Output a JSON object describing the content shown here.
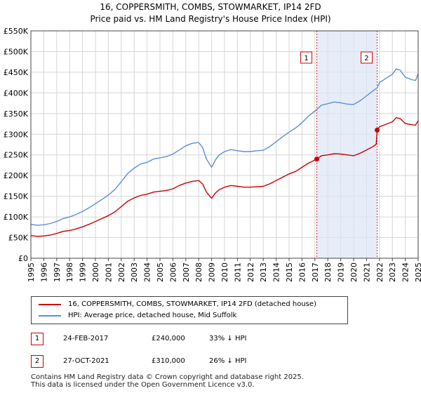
{
  "title_line1": "16, COPPERSMITH, COMBS, STOWMARKET, IP14 2FD",
  "title_line2": "Price paid vs. HM Land Registry's House Price Index (HPI)",
  "chart_data": {
    "type": "line",
    "xlim": [
      1995,
      2025
    ],
    "ylim": [
      0,
      550000
    ],
    "y_ticks": [
      0,
      50000,
      100000,
      150000,
      200000,
      250000,
      300000,
      350000,
      400000,
      450000,
      500000,
      550000
    ],
    "y_tick_labels": [
      "£0",
      "£50K",
      "£100K",
      "£150K",
      "£200K",
      "£250K",
      "£300K",
      "£350K",
      "£400K",
      "£450K",
      "£500K",
      "£550K"
    ],
    "x_ticks": [
      1995,
      1996,
      1997,
      1998,
      1999,
      2000,
      2001,
      2002,
      2003,
      2004,
      2005,
      2006,
      2007,
      2008,
      2009,
      2010,
      2011,
      2012,
      2013,
      2014,
      2015,
      2016,
      2017,
      2018,
      2019,
      2020,
      2021,
      2022,
      2023,
      2024,
      2025
    ],
    "x_tick_labels": [
      "1995",
      "1996",
      "1997",
      "1998",
      "1999",
      "2000",
      "2001",
      "2002",
      "2003",
      "2004",
      "2005",
      "2006",
      "2007",
      "2008",
      "2009",
      "2010",
      "2011",
      "2012",
      "2013",
      "2014",
      "2015",
      "2016",
      "2017",
      "2018",
      "2019",
      "2020",
      "2021",
      "2022",
      "2023",
      "2024",
      "2025"
    ],
    "grid": true,
    "highlight_span": [
      2017.15,
      2021.82
    ],
    "series": [
      {
        "name": "16, COPPERSMITH, COMBS, STOWMARKET, IP14 2FD (detached house)",
        "color": "#cc0000",
        "x": [
          1995,
          1995.5,
          1996,
          1996.5,
          1997,
          1997.5,
          1998,
          1998.5,
          1999,
          1999.5,
          2000,
          2000.5,
          2001,
          2001.5,
          2002,
          2002.5,
          2003,
          2003.5,
          2004,
          2004.5,
          2005,
          2005.5,
          2006,
          2006.5,
          2007,
          2007.5,
          2008,
          2008.3,
          2008.6,
          2009,
          2009.3,
          2009.6,
          2010,
          2010.5,
          2011,
          2011.5,
          2012,
          2012.5,
          2013,
          2013.5,
          2014,
          2014.5,
          2015,
          2015.5,
          2016,
          2016.5,
          2017.15,
          2017.5,
          2018,
          2018.5,
          2019,
          2019.5,
          2020,
          2020.5,
          2021,
          2021.5,
          2021.75,
          2021.82,
          2022,
          2022.5,
          2023,
          2023.3,
          2023.6,
          2024,
          2024.5,
          2024.8,
          2025
        ],
        "y": [
          55000,
          53000,
          54000,
          56000,
          60000,
          65000,
          67000,
          71000,
          76000,
          82000,
          89000,
          96000,
          103000,
          112000,
          125000,
          138000,
          146000,
          152000,
          155000,
          160000,
          162000,
          164000,
          168000,
          176000,
          182000,
          186000,
          188000,
          180000,
          160000,
          145000,
          158000,
          166000,
          172000,
          176000,
          174000,
          172000,
          172000,
          173000,
          174000,
          180000,
          188000,
          196000,
          204000,
          210000,
          220000,
          230000,
          240000,
          248000,
          250000,
          253000,
          252000,
          250000,
          248000,
          254000,
          262000,
          270000,
          276000,
          310000,
          318000,
          324000,
          330000,
          340000,
          338000,
          326000,
          323000,
          322000,
          333000
        ]
      },
      {
        "name": "HPI: Average price, detached house, Mid Suffolk",
        "color": "#5b8fd4",
        "x": [
          1995,
          1995.5,
          1996,
          1996.5,
          1997,
          1997.5,
          1998,
          1998.5,
          1999,
          1999.5,
          2000,
          2000.5,
          2001,
          2001.5,
          2002,
          2002.5,
          2003,
          2003.5,
          2004,
          2004.5,
          2005,
          2005.5,
          2006,
          2006.5,
          2007,
          2007.5,
          2008,
          2008.3,
          2008.6,
          2009,
          2009.3,
          2009.6,
          2010,
          2010.5,
          2011,
          2011.5,
          2012,
          2012.5,
          2013,
          2013.5,
          2014,
          2014.5,
          2015,
          2015.5,
          2016,
          2016.5,
          2017.15,
          2017.5,
          2018,
          2018.5,
          2019,
          2019.5,
          2020,
          2020.5,
          2021,
          2021.5,
          2021.82,
          2022,
          2022.5,
          2023,
          2023.3,
          2023.6,
          2024,
          2024.5,
          2024.8,
          2025
        ],
        "y": [
          82000,
          80000,
          81000,
          84000,
          89000,
          96000,
          100000,
          106000,
          113000,
          122000,
          132000,
          142000,
          153000,
          166000,
          185000,
          205000,
          218000,
          228000,
          232000,
          240000,
          243000,
          246000,
          252000,
          262000,
          272000,
          278000,
          280000,
          268000,
          240000,
          220000,
          238000,
          250000,
          258000,
          263000,
          260000,
          258000,
          258000,
          260000,
          261000,
          270000,
          282000,
          294000,
          305000,
          315000,
          328000,
          344000,
          360000,
          370000,
          374000,
          378000,
          376000,
          373000,
          372000,
          381000,
          393000,
          405000,
          412000,
          425000,
          435000,
          445000,
          458000,
          455000,
          438000,
          432000,
          430000,
          447000
        ]
      }
    ],
    "sales": [
      {
        "label": "1",
        "x": 2017.15,
        "y": 240000
      },
      {
        "label": "2",
        "x": 2021.82,
        "y": 310000
      }
    ]
  },
  "legend": {
    "property_label": "16, COPPERSMITH, COMBS, STOWMARKET, IP14 2FD (detached house)",
    "hpi_label": "HPI: Average price, detached house, Mid Suffolk",
    "property_color": "#cc0000",
    "hpi_color": "#5b8fd4"
  },
  "sales_table": [
    {
      "num": "1",
      "date": "24-FEB-2017",
      "price": "£240,000",
      "hpi": "33% ↓ HPI"
    },
    {
      "num": "2",
      "date": "27-OCT-2021",
      "price": "£310,000",
      "hpi": "26% ↓ HPI"
    }
  ],
  "footer_line1": "Contains HM Land Registry data © Crown copyright and database right 2025.",
  "footer_line2": "This data is licensed under the Open Government Licence v3.0."
}
